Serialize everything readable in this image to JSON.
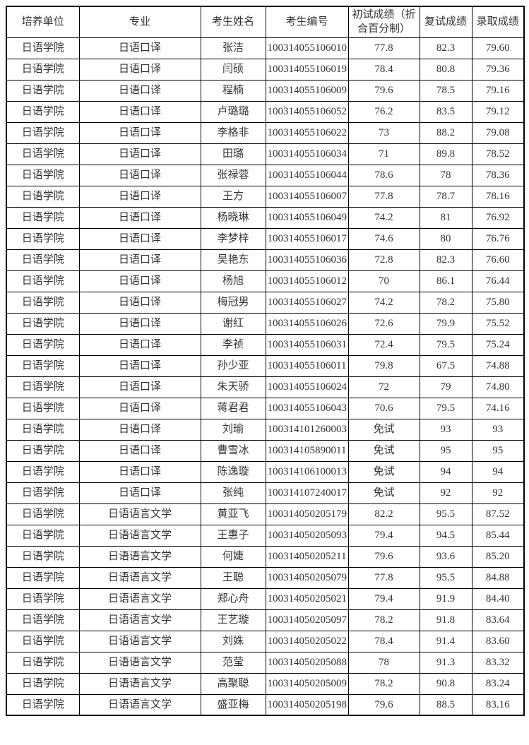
{
  "colors": {
    "background": "#ffffff",
    "border": "#000000",
    "text": "#333333"
  },
  "table": {
    "columns": [
      "培养单位",
      "专业",
      "考生姓名",
      "考生编号",
      "初试成绩（折合百分制）",
      "复试成绩",
      "录取成绩"
    ],
    "column_keys": [
      "unit",
      "major",
      "name",
      "id",
      "initial-score",
      "retest-score",
      "final-score"
    ],
    "rows": [
      [
        "日语学院",
        "日语口译",
        "张洁",
        "100314055106010",
        "77.8",
        "82.3",
        "79.60"
      ],
      [
        "日语学院",
        "日语口译",
        "闫硕",
        "100314055106019",
        "78.4",
        "80.8",
        "79.36"
      ],
      [
        "日语学院",
        "日语口译",
        "程楠",
        "100314055106009",
        "79.6",
        "78.5",
        "79.16"
      ],
      [
        "日语学院",
        "日语口译",
        "卢璐璐",
        "100314055106052",
        "76.2",
        "83.5",
        "79.12"
      ],
      [
        "日语学院",
        "日语口译",
        "李格非",
        "100314055106022",
        "73",
        "88.2",
        "79.08"
      ],
      [
        "日语学院",
        "日语口译",
        "田璐",
        "100314055106034",
        "71",
        "89.8",
        "78.52"
      ],
      [
        "日语学院",
        "日语口译",
        "张禄蓉",
        "100314055106044",
        "78.6",
        "78",
        "78.36"
      ],
      [
        "日语学院",
        "日语口译",
        "王方",
        "100314055106007",
        "77.8",
        "78.7",
        "78.16"
      ],
      [
        "日语学院",
        "日语口译",
        "杨晓琳",
        "100314055106049",
        "74.2",
        "81",
        "76.92"
      ],
      [
        "日语学院",
        "日语口译",
        "李梦梓",
        "100314055106017",
        "74.6",
        "80",
        "76.76"
      ],
      [
        "日语学院",
        "日语口译",
        "吴艳东",
        "100314055106036",
        "72.8",
        "82.3",
        "76.60"
      ],
      [
        "日语学院",
        "日语口译",
        "杨旭",
        "100314055106012",
        "70",
        "86.1",
        "76.44"
      ],
      [
        "日语学院",
        "日语口译",
        "梅冠男",
        "100314055106027",
        "74.2",
        "78.2",
        "75.80"
      ],
      [
        "日语学院",
        "日语口译",
        "谢红",
        "100314055106026",
        "72.6",
        "79.9",
        "75.52"
      ],
      [
        "日语学院",
        "日语口译",
        "李祯",
        "100314055106031",
        "72.4",
        "79.5",
        "75.24"
      ],
      [
        "日语学院",
        "日语口译",
        "孙少亚",
        "100314055106011",
        "79.8",
        "67.5",
        "74.88"
      ],
      [
        "日语学院",
        "日语口译",
        "朱天骄",
        "100314055106024",
        "72",
        "79",
        "74.80"
      ],
      [
        "日语学院",
        "日语口译",
        "蒋君君",
        "100314055106043",
        "70.6",
        "79.5",
        "74.16"
      ],
      [
        "日语学院",
        "日语口译",
        "刘瑜",
        "100314101260003",
        "免试",
        "93",
        "93"
      ],
      [
        "日语学院",
        "日语口译",
        "曹雪冰",
        "100314105890011",
        "免试",
        "95",
        "95"
      ],
      [
        "日语学院",
        "日语口译",
        "陈逸璇",
        "100314106100013",
        "免试",
        "94",
        "94"
      ],
      [
        "日语学院",
        "日语口译",
        "张纯",
        "100314107240017",
        "免试",
        "92",
        "92"
      ],
      [
        "日语学院",
        "日语语言文学",
        "黄亚飞",
        "100314050205179",
        "82.2",
        "95.5",
        "87.52"
      ],
      [
        "日语学院",
        "日语语言文学",
        "王惠子",
        "100314050205093",
        "79.4",
        "94.5",
        "85.44"
      ],
      [
        "日语学院",
        "日语语言文学",
        "何婕",
        "100314050205211",
        "79.6",
        "93.6",
        "85.20"
      ],
      [
        "日语学院",
        "日语语言文学",
        "王聪",
        "100314050205079",
        "77.8",
        "95.5",
        "84.88"
      ],
      [
        "日语学院",
        "日语语言文学",
        "郑心舟",
        "100314050205021",
        "79.4",
        "91.9",
        "84.40"
      ],
      [
        "日语学院",
        "日语语言文学",
        "王艺璇",
        "100314050205097",
        "78.2",
        "91.8",
        "83.64"
      ],
      [
        "日语学院",
        "日语语言文学",
        "刘姝",
        "100314050205022",
        "78.4",
        "91.4",
        "83.60"
      ],
      [
        "日语学院",
        "日语语言文学",
        "范莹",
        "100314050205088",
        "78",
        "91.3",
        "83.32"
      ],
      [
        "日语学院",
        "日语语言文学",
        "高聚聪",
        "100314050205009",
        "78.2",
        "90.8",
        "83.24"
      ],
      [
        "日语学院",
        "日语语言文学",
        "盛亚梅",
        "100314050205198",
        "79.6",
        "88.5",
        "83.16"
      ]
    ]
  }
}
